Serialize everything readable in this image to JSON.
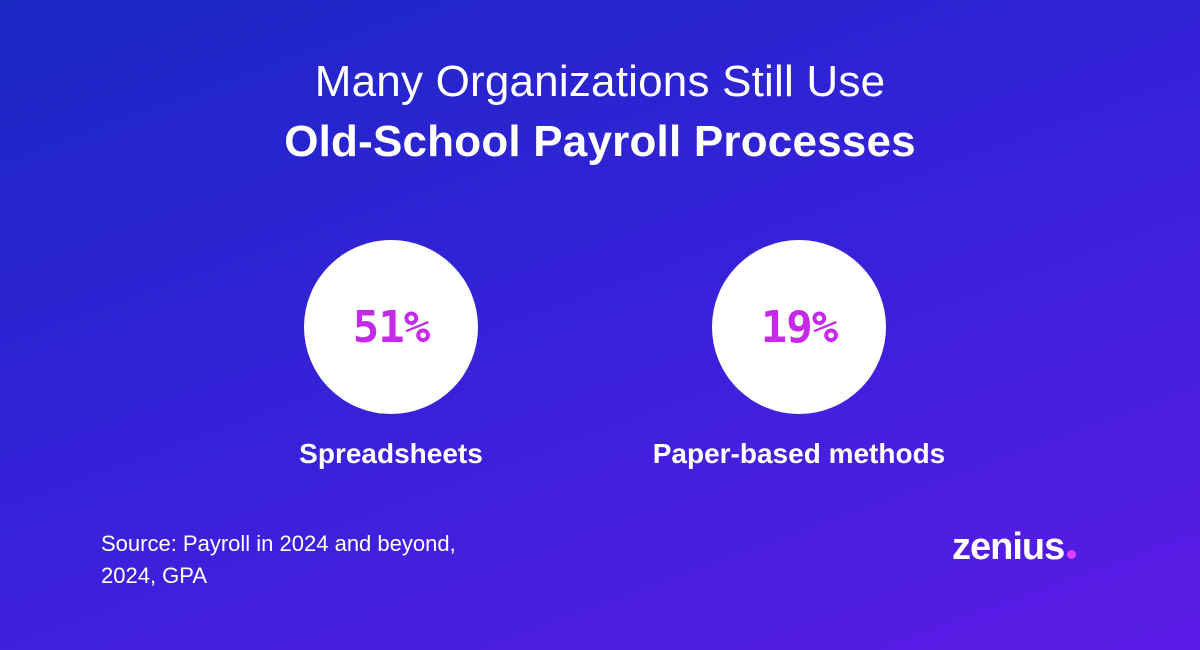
{
  "headline": {
    "line1": "Many Organizations Still Use",
    "line2": "Old-School Payroll Processes"
  },
  "stats": [
    {
      "value": "51%",
      "label": "Spreadsheets"
    },
    {
      "value": "19%",
      "label": "Paper-based methods"
    }
  ],
  "source": {
    "line1": "Source: Payroll in 2024 and beyond,",
    "line2": "2024, GPA"
  },
  "logo": {
    "text": "zenius",
    "dot_color": "#e040ff"
  },
  "colors": {
    "accent": "#c52ae8",
    "background_start": "#1a28c4",
    "background_end": "#5b1be6"
  }
}
